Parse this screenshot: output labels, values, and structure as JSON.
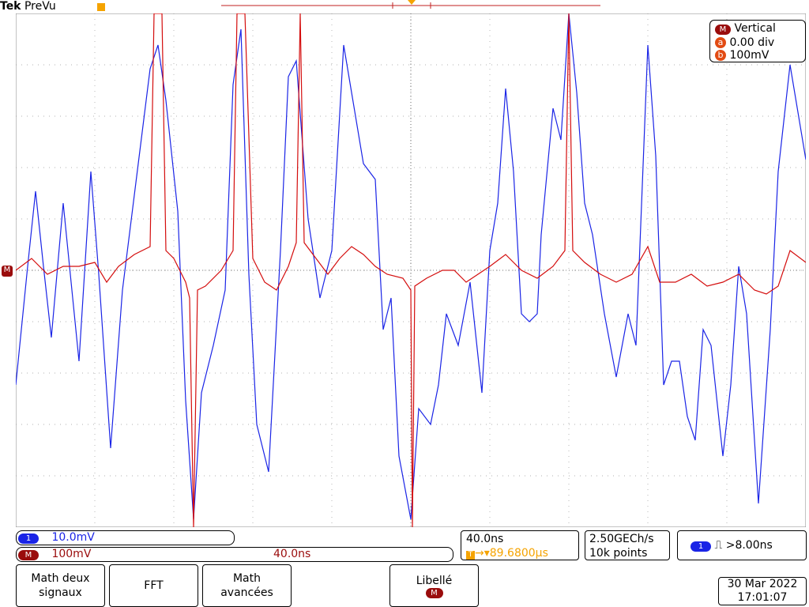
{
  "header": {
    "brand": "Tek",
    "mode": "PreVu"
  },
  "vertical_panel": {
    "title_badge": "M",
    "title": "Vertical",
    "rows": [
      {
        "badge": "a",
        "value": "0.00 div"
      },
      {
        "badge": "b",
        "value": "100mV"
      }
    ]
  },
  "markers": {
    "trigger": "T",
    "math_ref": "M"
  },
  "status": {
    "ch1_badge": "1",
    "ch1_scale": "10.0mV",
    "math_badge": "M",
    "math_scale": "100mV",
    "math_time": "40.0ns",
    "timebase": "40.0ns",
    "trigger_position": "89.6800µs",
    "sample_rate": "2.50GECh/s",
    "record_length": "10k points",
    "trigger_source": "1",
    "trigger_level": ">8.00ns"
  },
  "buttons": {
    "math_dual": "Math deux\nsignaux",
    "fft": "FFT",
    "math_advanced": "Math\navancées",
    "label_text": "Libellé",
    "label_badge": "M"
  },
  "datetime": {
    "date": "30 Mar  2022",
    "time": "17:01:07"
  },
  "colors": {
    "ch1": "#1a24e6",
    "math": "#d40d0d",
    "trigger": "#f5a300",
    "math_ref": "#9a0c0c"
  }
}
